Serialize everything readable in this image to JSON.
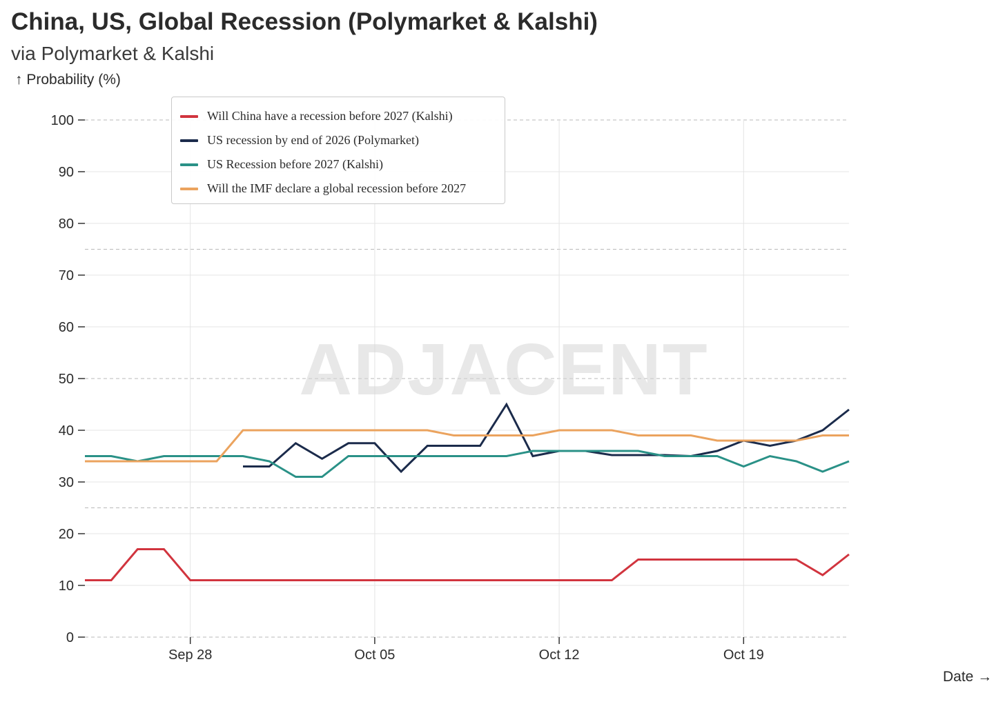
{
  "title": "China, US, Global Recession (Polymarket & Kalshi)",
  "subtitle": "via Polymarket & Kalshi",
  "watermark": "ADJACENT",
  "chart_data": {
    "type": "line",
    "title": "China, US, Global Recession (Polymarket & Kalshi)",
    "subtitle": "via Polymarket & Kalshi",
    "ylabel": "↑ Probability (%)",
    "xlabel": "Date →",
    "ylim": [
      0,
      100
    ],
    "yticks": [
      0,
      10,
      20,
      30,
      40,
      50,
      60,
      70,
      80,
      90,
      100
    ],
    "ytick_labels": [
      "0",
      "10",
      "20",
      "30",
      "40",
      "50",
      "60",
      "70",
      "80",
      "90",
      "100"
    ],
    "xlim": [
      "2025-09-24",
      "2025-10-23"
    ],
    "xticks": [
      "2025-09-28",
      "2025-10-05",
      "2025-10-12",
      "2025-10-19"
    ],
    "xtick_labels": [
      "Sep 28",
      "Oct 05",
      "Oct 12",
      "Oct 19"
    ],
    "grid": true,
    "legend_position": "top-left",
    "series": [
      {
        "name": "Will China have a recession before 2027 (Kalshi)",
        "color": "#d1343e",
        "points": [
          [
            "2025-09-24",
            11
          ],
          [
            "2025-09-25",
            11
          ],
          [
            "2025-09-26",
            17
          ],
          [
            "2025-09-27",
            17
          ],
          [
            "2025-09-28",
            11
          ],
          [
            "2025-09-29",
            11
          ],
          [
            "2025-09-30",
            11
          ],
          [
            "2025-10-01",
            11
          ],
          [
            "2025-10-02",
            11
          ],
          [
            "2025-10-03",
            11
          ],
          [
            "2025-10-04",
            11
          ],
          [
            "2025-10-05",
            11
          ],
          [
            "2025-10-06",
            11
          ],
          [
            "2025-10-07",
            11
          ],
          [
            "2025-10-08",
            11
          ],
          [
            "2025-10-09",
            11
          ],
          [
            "2025-10-10",
            11
          ],
          [
            "2025-10-11",
            11
          ],
          [
            "2025-10-12",
            11
          ],
          [
            "2025-10-13",
            11
          ],
          [
            "2025-10-14",
            11
          ],
          [
            "2025-10-15",
            15
          ],
          [
            "2025-10-16",
            15
          ],
          [
            "2025-10-17",
            15
          ],
          [
            "2025-10-18",
            15
          ],
          [
            "2025-10-19",
            15
          ],
          [
            "2025-10-20",
            15
          ],
          [
            "2025-10-21",
            15
          ],
          [
            "2025-10-22",
            12
          ],
          [
            "2025-10-23",
            16
          ]
        ]
      },
      {
        "name": "US recession by end of 2026 (Polymarket)",
        "color": "#1b2b4b",
        "points": [
          [
            "2025-09-30",
            33
          ],
          [
            "2025-10-01",
            33
          ],
          [
            "2025-10-02",
            37.5
          ],
          [
            "2025-10-03",
            34.5
          ],
          [
            "2025-10-04",
            37.5
          ],
          [
            "2025-10-05",
            37.5
          ],
          [
            "2025-10-06",
            32
          ],
          [
            "2025-10-07",
            37
          ],
          [
            "2025-10-08",
            37
          ],
          [
            "2025-10-09",
            37
          ],
          [
            "2025-10-10",
            45
          ],
          [
            "2025-10-11",
            35
          ],
          [
            "2025-10-12",
            36
          ],
          [
            "2025-10-13",
            36
          ],
          [
            "2025-10-14",
            35.2
          ],
          [
            "2025-10-15",
            35.2
          ],
          [
            "2025-10-16",
            35.2
          ],
          [
            "2025-10-17",
            35
          ],
          [
            "2025-10-18",
            36
          ],
          [
            "2025-10-19",
            38
          ],
          [
            "2025-10-20",
            37
          ],
          [
            "2025-10-21",
            38
          ],
          [
            "2025-10-22",
            40
          ],
          [
            "2025-10-23",
            44
          ]
        ]
      },
      {
        "name": "US Recession before 2027 (Kalshi)",
        "color": "#2a9187",
        "points": [
          [
            "2025-09-24",
            35
          ],
          [
            "2025-09-25",
            35
          ],
          [
            "2025-09-26",
            34
          ],
          [
            "2025-09-27",
            35
          ],
          [
            "2025-09-28",
            35
          ],
          [
            "2025-09-29",
            35
          ],
          [
            "2025-09-30",
            35
          ],
          [
            "2025-10-01",
            34
          ],
          [
            "2025-10-02",
            31
          ],
          [
            "2025-10-03",
            31
          ],
          [
            "2025-10-04",
            35
          ],
          [
            "2025-10-05",
            35
          ],
          [
            "2025-10-06",
            35
          ],
          [
            "2025-10-07",
            35
          ],
          [
            "2025-10-08",
            35
          ],
          [
            "2025-10-09",
            35
          ],
          [
            "2025-10-10",
            35
          ],
          [
            "2025-10-11",
            36
          ],
          [
            "2025-10-12",
            36
          ],
          [
            "2025-10-13",
            36
          ],
          [
            "2025-10-14",
            36
          ],
          [
            "2025-10-15",
            36
          ],
          [
            "2025-10-16",
            35
          ],
          [
            "2025-10-17",
            35
          ],
          [
            "2025-10-18",
            35
          ],
          [
            "2025-10-19",
            33
          ],
          [
            "2025-10-20",
            35
          ],
          [
            "2025-10-21",
            34
          ],
          [
            "2025-10-22",
            32
          ],
          [
            "2025-10-23",
            34
          ]
        ]
      },
      {
        "name": "Will the IMF declare a global recession before 2027",
        "color": "#eba35e",
        "points": [
          [
            "2025-09-24",
            34
          ],
          [
            "2025-09-25",
            34
          ],
          [
            "2025-09-26",
            34
          ],
          [
            "2025-09-27",
            34
          ],
          [
            "2025-09-28",
            34
          ],
          [
            "2025-09-29",
            34
          ],
          [
            "2025-09-30",
            40
          ],
          [
            "2025-10-01",
            40
          ],
          [
            "2025-10-02",
            40
          ],
          [
            "2025-10-03",
            40
          ],
          [
            "2025-10-04",
            40
          ],
          [
            "2025-10-05",
            40
          ],
          [
            "2025-10-06",
            40
          ],
          [
            "2025-10-07",
            40
          ],
          [
            "2025-10-08",
            39
          ],
          [
            "2025-10-09",
            39
          ],
          [
            "2025-10-10",
            39
          ],
          [
            "2025-10-11",
            39
          ],
          [
            "2025-10-12",
            40
          ],
          [
            "2025-10-13",
            40
          ],
          [
            "2025-10-14",
            40
          ],
          [
            "2025-10-15",
            39
          ],
          [
            "2025-10-16",
            39
          ],
          [
            "2025-10-17",
            39
          ],
          [
            "2025-10-18",
            38
          ],
          [
            "2025-10-19",
            38
          ],
          [
            "2025-10-20",
            38
          ],
          [
            "2025-10-21",
            38
          ],
          [
            "2025-10-22",
            39
          ],
          [
            "2025-10-23",
            39
          ]
        ]
      }
    ]
  }
}
